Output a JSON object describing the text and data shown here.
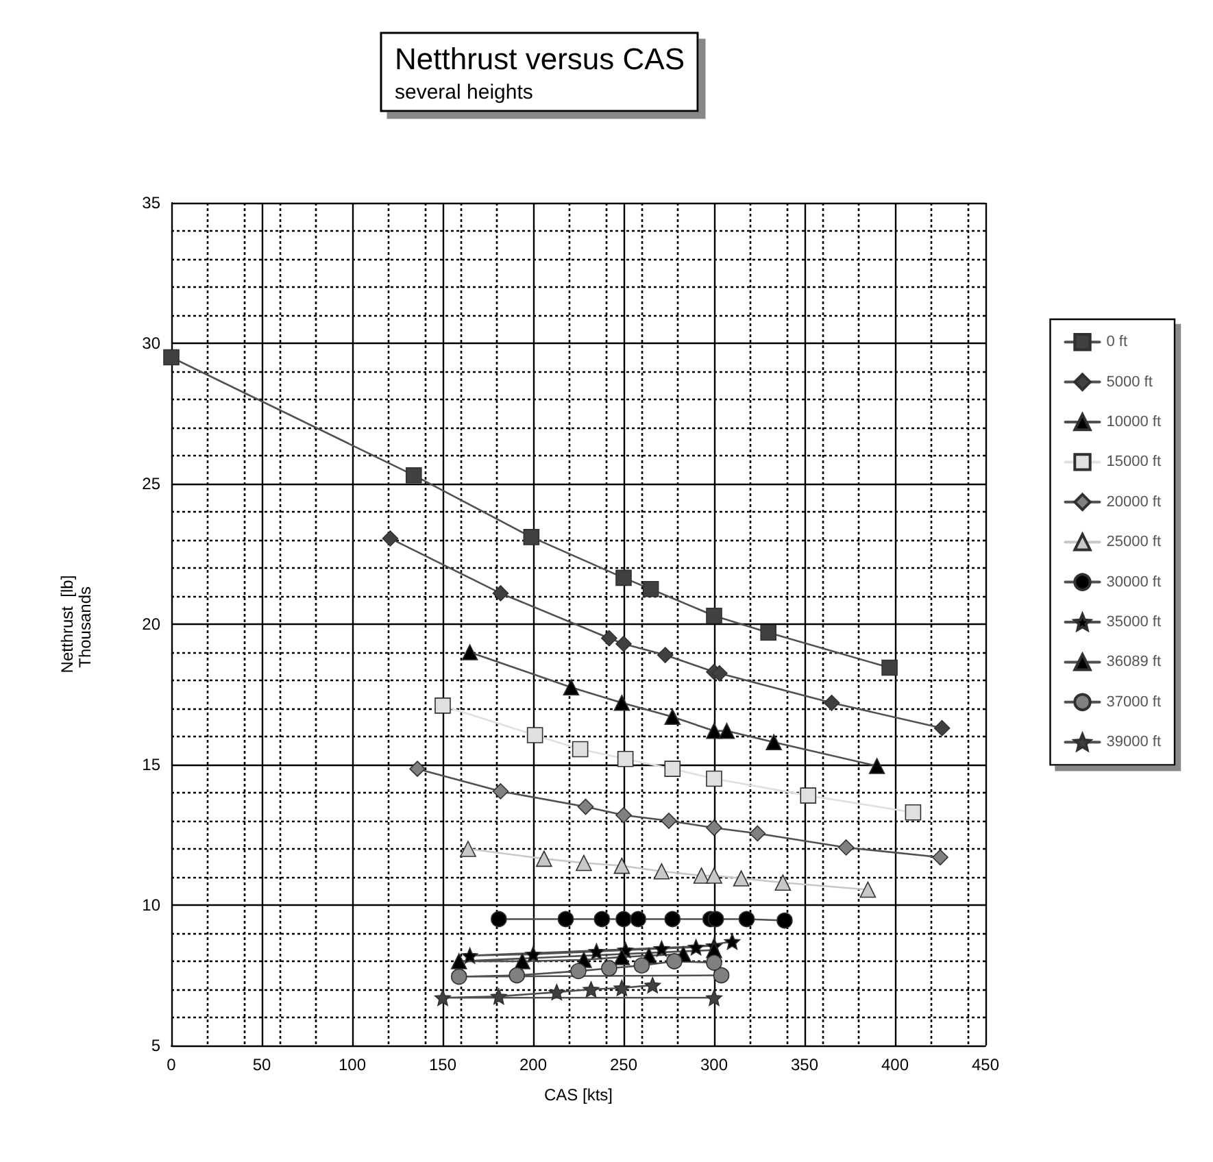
{
  "chart_data": {
    "type": "line",
    "title": "Netthrust versus CAS",
    "subtitle": "several heights",
    "xlabel": "CAS [kts]",
    "ylabel": "Netthrust  [lb]",
    "annotations": [
      "Thousands"
    ],
    "xlim": [
      0,
      450
    ],
    "xticks": [
      0,
      50,
      100,
      150,
      200,
      250,
      300,
      350,
      400,
      450
    ],
    "ylim": [
      5,
      35
    ],
    "yticks": [
      5,
      10,
      15,
      20,
      25,
      30,
      35
    ],
    "grid": true,
    "legend": "right",
    "series": [
      {
        "name": "0 ft",
        "color": "#404040",
        "marker": "square",
        "x": [
          0,
          134,
          199,
          250,
          265,
          300,
          330,
          397
        ],
        "values": [
          29.5,
          25.3,
          23.1,
          21.65,
          21.25,
          20.3,
          19.7,
          18.45
        ]
      },
      {
        "name": "5000 ft",
        "color": "#404040",
        "marker": "diamond",
        "x": [
          121,
          182,
          242,
          250,
          273,
          300,
          303,
          365,
          426
        ],
        "values": [
          23.05,
          21.1,
          19.5,
          19.3,
          18.9,
          18.3,
          18.25,
          17.2,
          16.3
        ]
      },
      {
        "name": "10000 ft",
        "color": "#000000",
        "marker": "triangle",
        "x": [
          165,
          221,
          249,
          277,
          300,
          307,
          333,
          390
        ],
        "values": [
          19.0,
          17.75,
          17.2,
          16.7,
          16.2,
          16.2,
          15.8,
          14.95
        ]
      },
      {
        "name": "15000 ft",
        "color": "#e0e0e0",
        "marker": "square",
        "x": [
          150,
          201,
          226,
          251,
          277,
          300,
          352,
          410
        ],
        "values": [
          17.1,
          16.05,
          15.55,
          15.2,
          14.85,
          14.5,
          13.9,
          13.3
        ]
      },
      {
        "name": "20000 ft",
        "color": "#808080",
        "marker": "diamond",
        "x": [
          136,
          182,
          229,
          250,
          275,
          300,
          324,
          373,
          425
        ],
        "values": [
          14.85,
          14.05,
          13.5,
          13.2,
          13.0,
          12.75,
          12.55,
          12.05,
          11.7
        ]
      },
      {
        "name": "25000 ft",
        "color": "#c8c8c8",
        "marker": "triangle",
        "x": [
          164,
          206,
          228,
          249,
          271,
          293,
          300,
          315,
          338,
          385
        ],
        "values": [
          12.0,
          11.65,
          11.5,
          11.4,
          11.2,
          11.05,
          11.05,
          10.95,
          10.8,
          10.55
        ]
      },
      {
        "name": "30000 ft",
        "color": "#000000",
        "marker": "circle",
        "x": [
          181,
          218,
          238,
          250,
          258,
          277,
          298,
          301,
          318,
          339
        ],
        "values": [
          9.5,
          9.5,
          9.5,
          9.5,
          9.5,
          9.5,
          9.5,
          9.5,
          9.5,
          9.45
        ]
      },
      {
        "name": "35000 ft",
        "color": "#000000",
        "marker": "star",
        "x": [
          300,
          165,
          200,
          235,
          251,
          271,
          290,
          310
        ],
        "values": [
          8.55,
          8.2,
          8.25,
          8.35,
          8.4,
          8.45,
          8.5,
          8.7
        ]
      },
      {
        "name": "36089 ft",
        "color": "#000000",
        "marker": "triangle",
        "x": [
          300,
          159,
          194,
          228,
          249,
          264,
          283
        ],
        "values": [
          8.4,
          8.0,
          8.0,
          8.05,
          8.15,
          8.2,
          8.25
        ]
      },
      {
        "name": "37000 ft",
        "color": "#808080",
        "marker": "circle",
        "x": [
          304,
          159,
          191,
          225,
          242,
          260,
          278,
          300
        ],
        "values": [
          7.5,
          7.45,
          7.5,
          7.65,
          7.75,
          7.85,
          8.0,
          7.95
        ]
      },
      {
        "name": "39000 ft",
        "color": "#404040",
        "marker": "star",
        "x": [
          300,
          150,
          181,
          213,
          232,
          249,
          266
        ],
        "values": [
          6.7,
          6.7,
          6.75,
          6.9,
          7.0,
          7.05,
          7.15
        ]
      }
    ]
  }
}
